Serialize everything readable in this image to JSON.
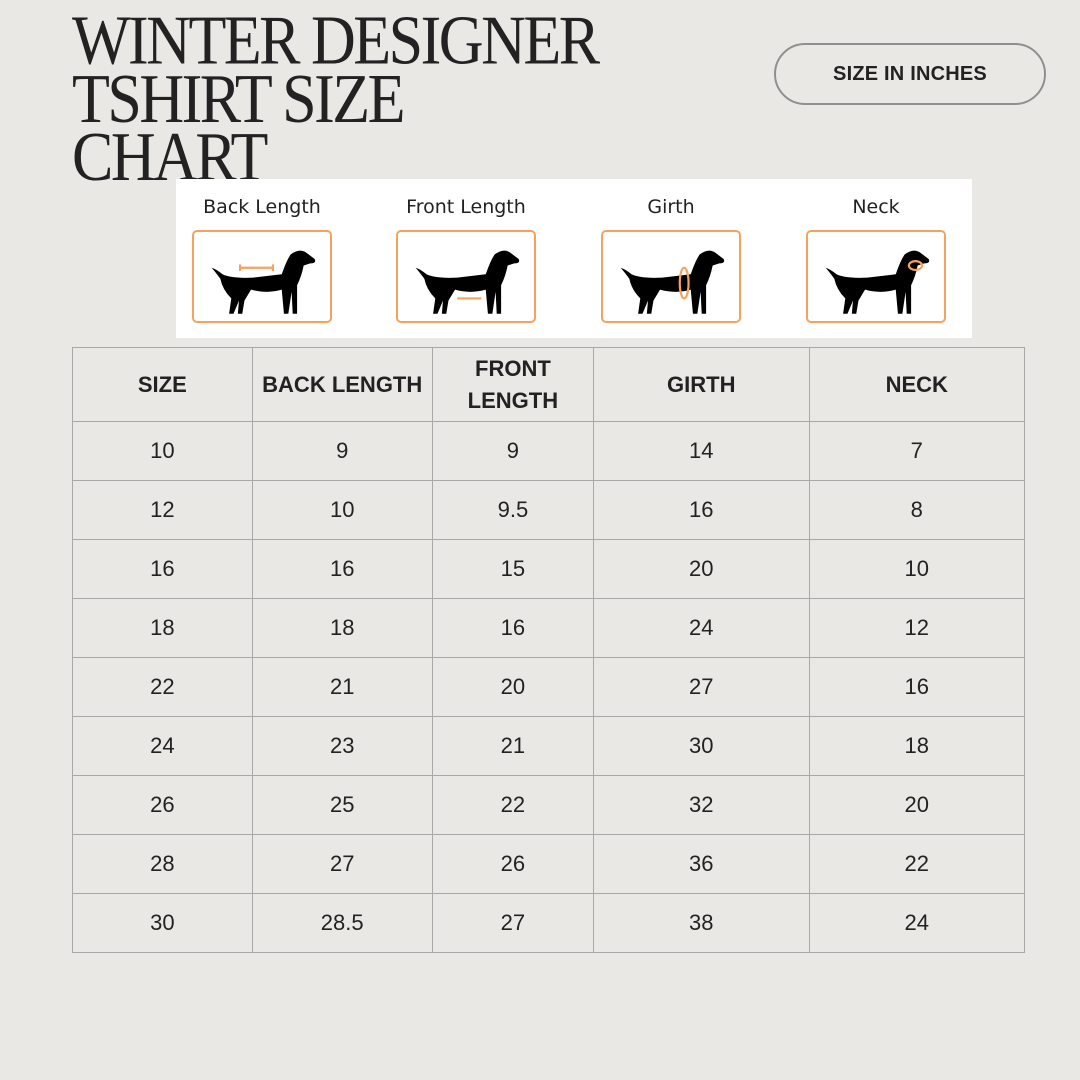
{
  "title": {
    "line1": "WINTER DESIGNER",
    "line2": "TSHIRT SIZE",
    "line3": "CHART"
  },
  "unit_button": "SIZE IN INCHES",
  "guide": {
    "accent_color": "#f5a35c",
    "items": [
      {
        "label": "Back Length",
        "icon": "dog-back-length-icon"
      },
      {
        "label": "Front Length",
        "icon": "dog-front-length-icon"
      },
      {
        "label": "Girth",
        "icon": "dog-girth-icon"
      },
      {
        "label": "Neck",
        "icon": "dog-neck-icon"
      }
    ]
  },
  "table": {
    "headers": [
      "SIZE",
      "BACK LENGTH",
      "FRONT LENGTH",
      "GIRTH",
      "NECK"
    ],
    "rows": [
      [
        "10",
        "9",
        "9",
        "14",
        "7"
      ],
      [
        "12",
        "10",
        "9.5",
        "16",
        "8"
      ],
      [
        "16",
        "16",
        "15",
        "20",
        "10"
      ],
      [
        "18",
        "18",
        "16",
        "24",
        "12"
      ],
      [
        "22",
        "21",
        "20",
        "27",
        "16"
      ],
      [
        "24",
        "23",
        "21",
        "30",
        "18"
      ],
      [
        "26",
        "25",
        "22",
        "32",
        "20"
      ],
      [
        "28",
        "27",
        "26",
        "36",
        "22"
      ],
      [
        "30",
        "28.5",
        "27",
        "38",
        "24"
      ]
    ]
  }
}
